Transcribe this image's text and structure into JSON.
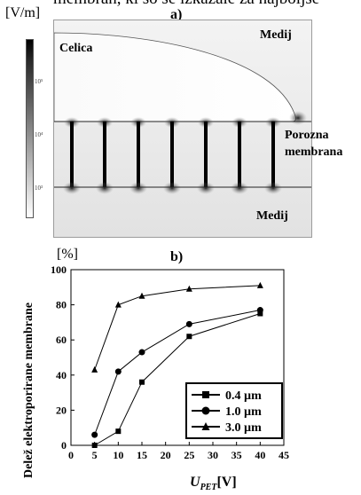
{
  "figure": {
    "cut_text": "membran, ki so se izkazale za najboljše",
    "panel_a": {
      "label": "a)",
      "unit": "[V/m]",
      "colorbar_ticks": [
        "10⁵",
        "10⁴",
        "10³"
      ],
      "labels": {
        "cell": "Celica",
        "medium_top": "Medij",
        "membrane_line1": "Porozna",
        "membrane_line2": "membrana",
        "medium_bottom": "Medij"
      }
    },
    "panel_b": {
      "label": "b)",
      "unit": "[%]",
      "ylabel": "Delež elektroporirane membrane",
      "xlabel_main": "U",
      "xlabel_sub": "PET",
      "xlabel_unit": "[V]"
    }
  },
  "chart_data": {
    "type": "line",
    "xlim": [
      0,
      45
    ],
    "ylim": [
      0,
      100
    ],
    "xticks": [
      0,
      5,
      10,
      15,
      20,
      25,
      30,
      35,
      40,
      45
    ],
    "yticks": [
      0,
      20,
      40,
      60,
      80,
      100
    ],
    "grid": false,
    "legend_position": "bottom-right",
    "series": [
      {
        "name": "0.4 µm",
        "marker": "square",
        "x": [
          5,
          10,
          15,
          25,
          40
        ],
        "y": [
          0,
          8,
          36,
          62,
          75
        ]
      },
      {
        "name": "1.0 µm",
        "marker": "circle",
        "x": [
          5,
          10,
          15,
          25,
          40
        ],
        "y": [
          6,
          42,
          53,
          69,
          77
        ]
      },
      {
        "name": "3.0 µm",
        "marker": "triangle",
        "x": [
          5,
          10,
          15,
          25,
          40
        ],
        "y": [
          43,
          80,
          85,
          89,
          91
        ]
      }
    ]
  }
}
